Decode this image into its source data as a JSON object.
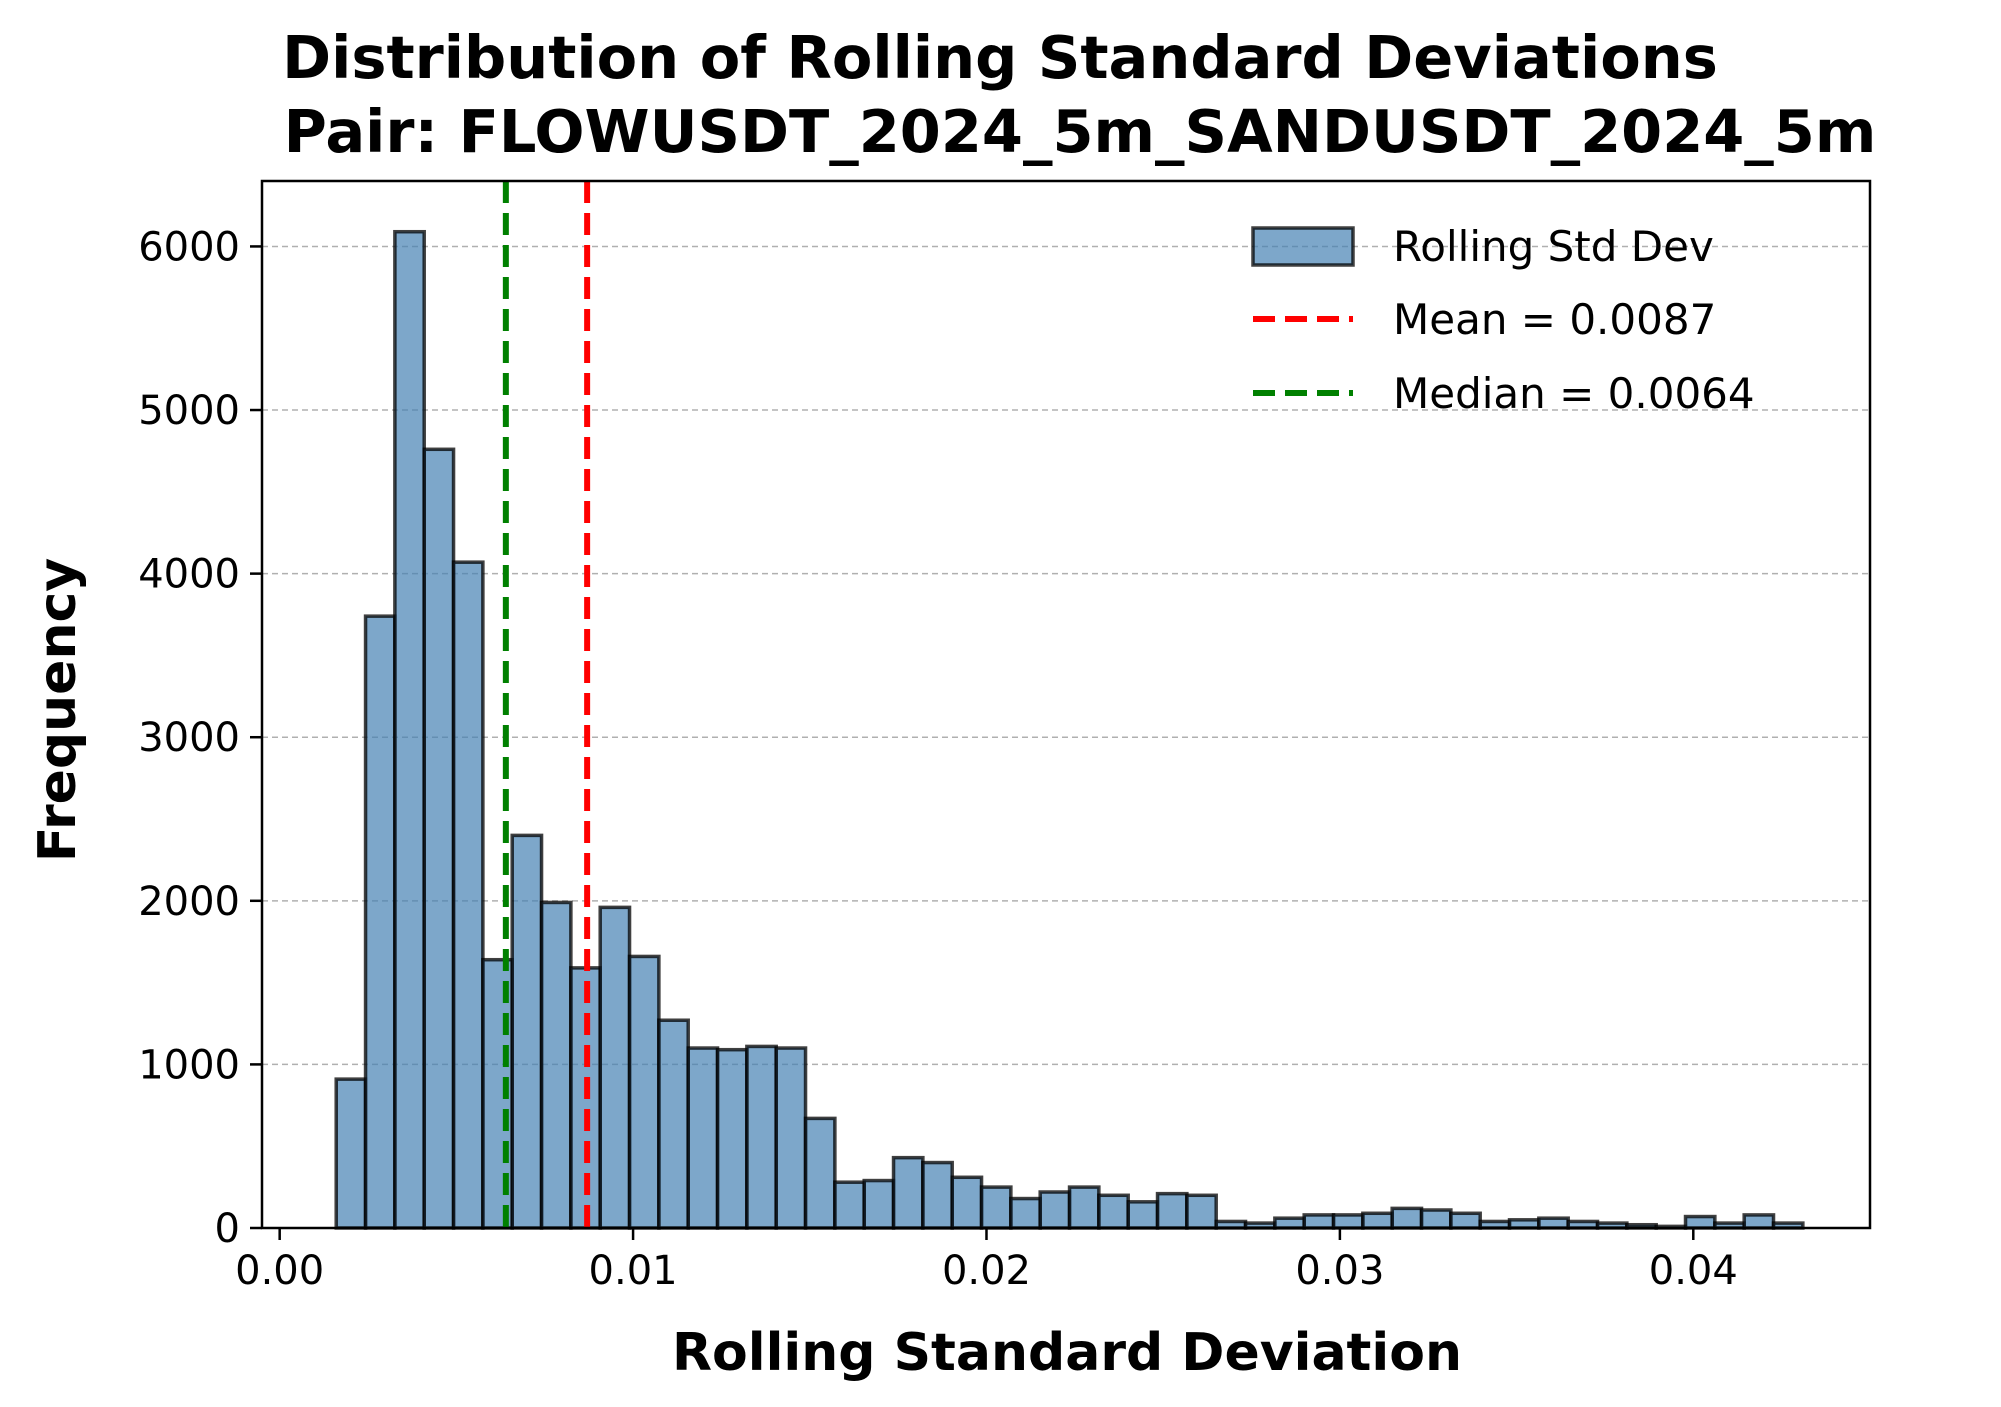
{
  "chart_data": {
    "type": "bar",
    "title": "Distribution of Rolling Standard Deviations",
    "subtitle": "Pair: FLOWUSDT_2024_5m_SANDUSDT_2024_5m",
    "xlabel": "Rolling Standard Deviation",
    "ylabel": "Frequency",
    "xlim": [
      -0.0005,
      0.045
    ],
    "ylim": [
      0,
      6400
    ],
    "xticks": [
      0.0,
      0.01,
      0.02,
      0.03,
      0.04
    ],
    "xtick_labels": [
      "0.00",
      "0.01",
      "0.02",
      "0.03",
      "0.04"
    ],
    "yticks": [
      0,
      1000,
      2000,
      3000,
      4000,
      5000,
      6000
    ],
    "ytick_labels": [
      "0",
      "1000",
      "2000",
      "3000",
      "4000",
      "5000",
      "6000"
    ],
    "grid": "y",
    "legend_position": "top-right",
    "bin_edges_start": 0.0016,
    "bin_width": 0.00083,
    "series": [
      {
        "name": "Rolling Std Dev",
        "color": "#4682b4",
        "values": [
          910,
          3740,
          6090,
          4760,
          4070,
          1640,
          2400,
          1990,
          1590,
          1960,
          1660,
          1270,
          1100,
          1090,
          1110,
          1100,
          670,
          280,
          290,
          430,
          400,
          310,
          250,
          180,
          220,
          250,
          200,
          160,
          210,
          200,
          40,
          30,
          60,
          80,
          80,
          90,
          120,
          110,
          90,
          40,
          50,
          60,
          40,
          30,
          20,
          10,
          70,
          30,
          80,
          30
        ]
      }
    ],
    "reference_lines": [
      {
        "name": "Mean = 0.0087",
        "value": 0.0087,
        "color": "#ff0000"
      },
      {
        "name": "Median = 0.0064",
        "value": 0.0064,
        "color": "#008000"
      }
    ]
  }
}
